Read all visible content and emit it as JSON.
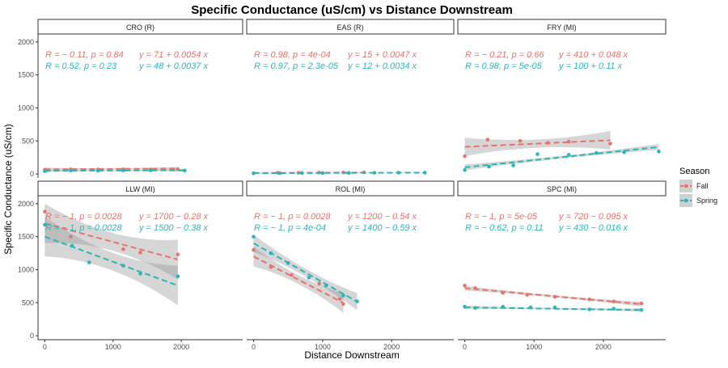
{
  "chart_data": {
    "type": "scatter",
    "title": "Specific Conductance (uS/cm) vs Distance Downstream",
    "xlabel": "Distance Downstream",
    "ylabel": "Specific Conductance (uS/cm)",
    "xlim": [
      -100,
      2900
    ],
    "ylim": [
      -60,
      2120
    ],
    "x_ticks": [
      0,
      1000,
      2000
    ],
    "y_ticks": [
      0,
      500,
      1000,
      1500,
      2000
    ],
    "legend": {
      "title": "Season",
      "position": "right",
      "entries": [
        {
          "label": "Fall",
          "color": "#E8736B"
        },
        {
          "label": "Spring",
          "color": "#2BB5B8"
        }
      ]
    },
    "panels": [
      {
        "name": "CRO (R)",
        "fall": {
          "stat": "R = − 0.11, p = 0.84",
          "eq": "y = 71 + 0.0054 x",
          "intercept": 71,
          "slope": 0.0054,
          "ci": 25,
          "points": [
            [
              0,
              65
            ],
            [
              380,
              70
            ],
            [
              780,
              68
            ],
            [
              1150,
              70
            ],
            [
              1550,
              68
            ],
            [
              1950,
              72
            ]
          ]
        },
        "spring": {
          "stat": "R = 0.52, p = 0.23",
          "eq": "y = 48 + 0.0037 x",
          "intercept": 48,
          "slope": 0.0037,
          "ci": 20,
          "points": [
            [
              0,
              42
            ],
            [
              380,
              52
            ],
            [
              780,
              50
            ],
            [
              1150,
              54
            ],
            [
              1550,
              55
            ],
            [
              2050,
              52
            ]
          ]
        }
      },
      {
        "name": "EAS (R)",
        "fall": {
          "stat": "R = 0.98, p = 4e-04",
          "eq": "y = 15 + 0.0047 x",
          "intercept": 15,
          "slope": 0.0047,
          "ci": 6,
          "points": [
            [
              0,
              12
            ],
            [
              350,
              18
            ],
            [
              650,
              19
            ],
            [
              950,
              21
            ],
            [
              1300,
              22
            ],
            [
              1600,
              24
            ]
          ]
        },
        "spring": {
          "stat": "R = 0.97, p = 2.3e-05",
          "eq": "y = 12 + 0.0034 x",
          "intercept": 12,
          "slope": 0.0034,
          "ci": 6,
          "points": [
            [
              0,
              10
            ],
            [
              380,
              12
            ],
            [
              700,
              14
            ],
            [
              1000,
              15
            ],
            [
              1380,
              16
            ],
            [
              1750,
              18
            ],
            [
              2100,
              19
            ],
            [
              2480,
              20
            ]
          ]
        }
      },
      {
        "name": "FRY (MI)",
        "fall": {
          "stat": "R = − 0.21, p = 0.66",
          "eq": "y = 410 + 0.048 x",
          "intercept": 410,
          "slope": 0.048,
          "ci": 140,
          "points": [
            [
              0,
              270
            ],
            [
              330,
              520
            ],
            [
              800,
              500
            ],
            [
              1200,
              470
            ],
            [
              1500,
              490
            ],
            [
              2100,
              460
            ]
          ]
        },
        "spring": {
          "stat": "R = 0.98, p = 5e-05",
          "eq": "y = 100 + 0.11 x",
          "intercept": 100,
          "slope": 0.11,
          "ci": 45,
          "points": [
            [
              0,
              60
            ],
            [
              350,
              110
            ],
            [
              700,
              130
            ],
            [
              1050,
              300
            ],
            [
              1500,
              290
            ],
            [
              1900,
              320
            ],
            [
              2300,
              330
            ],
            [
              2800,
              340
            ]
          ]
        }
      },
      {
        "name": "LLW (MI)",
        "fall": {
          "stat": "R = − 1, p = 0.0028",
          "eq": "y = 1700 − 0.28 x",
          "intercept": 1700,
          "slope": -0.28,
          "ci": 300,
          "points": [
            [
              0,
              1880
            ],
            [
              380,
              1500
            ],
            [
              1150,
              1310
            ],
            [
              1400,
              1260
            ],
            [
              1950,
              1230
            ]
          ]
        },
        "spring": {
          "stat": "R = − 1, p = 0.0028",
          "eq": "y = 1500 − 0.38 x",
          "intercept": 1500,
          "slope": -0.38,
          "ci": 300,
          "points": [
            [
              0,
              1680
            ],
            [
              400,
              1360
            ],
            [
              650,
              1110
            ],
            [
              1150,
              1060
            ],
            [
              1400,
              940
            ],
            [
              1950,
              900
            ]
          ]
        }
      },
      {
        "name": "ROL (MI)",
        "fall": {
          "stat": "R = − 1, p = 0.0028",
          "eq": "y = 1200 − 0.54 x",
          "intercept": 1200,
          "slope": -0.54,
          "ci": 150,
          "points": [
            [
              0,
              1300
            ],
            [
              250,
              1040
            ],
            [
              550,
              920
            ],
            [
              950,
              790
            ],
            [
              1250,
              560
            ],
            [
              1300,
              480
            ]
          ]
        },
        "spring": {
          "stat": "R = − 1, p = 4e-04",
          "eq": "y = 1400 − 0.59 x",
          "intercept": 1400,
          "slope": -0.59,
          "ci": 130,
          "points": [
            [
              0,
              1500
            ],
            [
              250,
              1250
            ],
            [
              500,
              1100
            ],
            [
              800,
              880
            ],
            [
              1050,
              760
            ],
            [
              1300,
              610
            ],
            [
              1500,
              520
            ]
          ]
        }
      },
      {
        "name": "SPC (MI)",
        "fall": {
          "stat": "R = − 1, p = 5e-05",
          "eq": "y = 720 − 0.095 x",
          "intercept": 720,
          "slope": -0.095,
          "ci": 35,
          "points": [
            [
              0,
              760
            ],
            [
              150,
              720
            ],
            [
              550,
              650
            ],
            [
              900,
              620
            ],
            [
              1300,
              590
            ],
            [
              1800,
              550
            ],
            [
              2150,
              520
            ],
            [
              2550,
              490
            ]
          ]
        },
        "spring": {
          "stat": "R = − 0.62, p = 0.11",
          "eq": "y = 430 − 0.016 x",
          "intercept": 430,
          "slope": -0.016,
          "ci": 25,
          "points": [
            [
              0,
              440
            ],
            [
              150,
              420
            ],
            [
              550,
              440
            ],
            [
              950,
              430
            ],
            [
              1300,
              430
            ],
            [
              1800,
              400
            ],
            [
              2150,
              410
            ],
            [
              2550,
              390
            ]
          ]
        }
      }
    ]
  }
}
